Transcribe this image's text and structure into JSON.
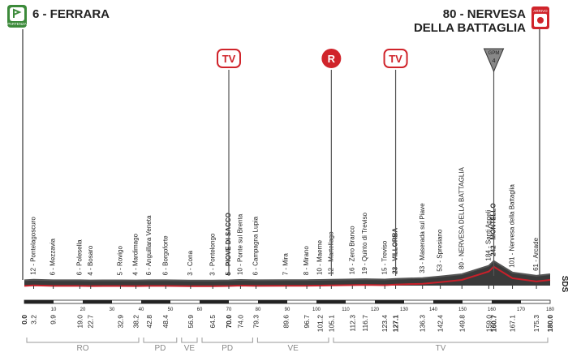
{
  "start": {
    "title": "6 - FERRARA",
    "badge": "PARTENZA",
    "km": "0.0"
  },
  "finish": {
    "title": [
      "80 - NERVESA",
      "DELLA BATTAGLIA"
    ],
    "badge": "ARRIVO",
    "km": "180.0"
  },
  "markers": [
    {
      "label": "TV",
      "km": "70.0"
    },
    {
      "label": "R",
      "km": "105.1"
    },
    {
      "label": "TV",
      "km": "127.1"
    },
    {
      "label": "GPM",
      "category": "4",
      "km": "160.7"
    }
  ],
  "waypoints": [
    {
      "label": "12 - Pontelagoscuro",
      "km": "3.2"
    },
    {
      "label": "6 - Mezzavia",
      "km": "9.9"
    },
    {
      "label": "6 - Polesella",
      "km": "19.0"
    },
    {
      "label": "4 - Bosaro",
      "km": "22.7"
    },
    {
      "label": "5 - Rovigo",
      "km": "32.9"
    },
    {
      "label": "4 - Mardimago",
      "km": "38.2"
    },
    {
      "label": "6 - Anguillara Veneta",
      "km": "42.8"
    },
    {
      "label": "6 - Borgoforte",
      "km": "48.4"
    },
    {
      "label": "3 - Cona",
      "km": "56.9"
    },
    {
      "label": "3 - Pontelongo",
      "km": "64.5"
    },
    {
      "label": "5 - PIOVE DI SACCO",
      "km": "70.0",
      "bold": true
    },
    {
      "label": "10 - Ponte sul Brenta",
      "km": "74.0"
    },
    {
      "label": "6 - Campagna Lupia",
      "km": "79.3"
    },
    {
      "label": "7 - Mira",
      "km": "89.6"
    },
    {
      "label": "8 - Mirano",
      "km": "96.7"
    },
    {
      "label": "10 - Maerne",
      "km": "101.2"
    },
    {
      "label": "12 - Martellago",
      "km": "105.1"
    },
    {
      "label": "16 - Zero Branco",
      "km": "112.3"
    },
    {
      "label": "19 - Quinto di Treviso",
      "km": "116.7"
    },
    {
      "label": "15 - Treviso",
      "km": "123.4"
    },
    {
      "label": "23 - VILLORBA",
      "km": "127.1",
      "bold": true
    },
    {
      "label": "33 - Maserada sul Piave",
      "km": "136.3"
    },
    {
      "label": "53 - Spresiano",
      "km": "142.4"
    },
    {
      "label": "80 - NERVESA DELLA BATTAGLIA",
      "km": "149.8"
    },
    {
      "label": "184 - Santi Angeli",
      "km": "159.0"
    },
    {
      "label": "242 - MONTELLO",
      "km": "160.7",
      "bold": true
    },
    {
      "label": "101 - Nervesa della Battaglia",
      "km": "167.1"
    },
    {
      "label": "61 - Arcade",
      "km": "175.3"
    }
  ],
  "scale_ticks": [
    10,
    20,
    30,
    40,
    50,
    60,
    70,
    80,
    90,
    100,
    110,
    120,
    130,
    140,
    150,
    160,
    170,
    180
  ],
  "regions": [
    "RO",
    "PD",
    "VE",
    "PD",
    "VE",
    "TV"
  ],
  "brand": "SDS"
}
